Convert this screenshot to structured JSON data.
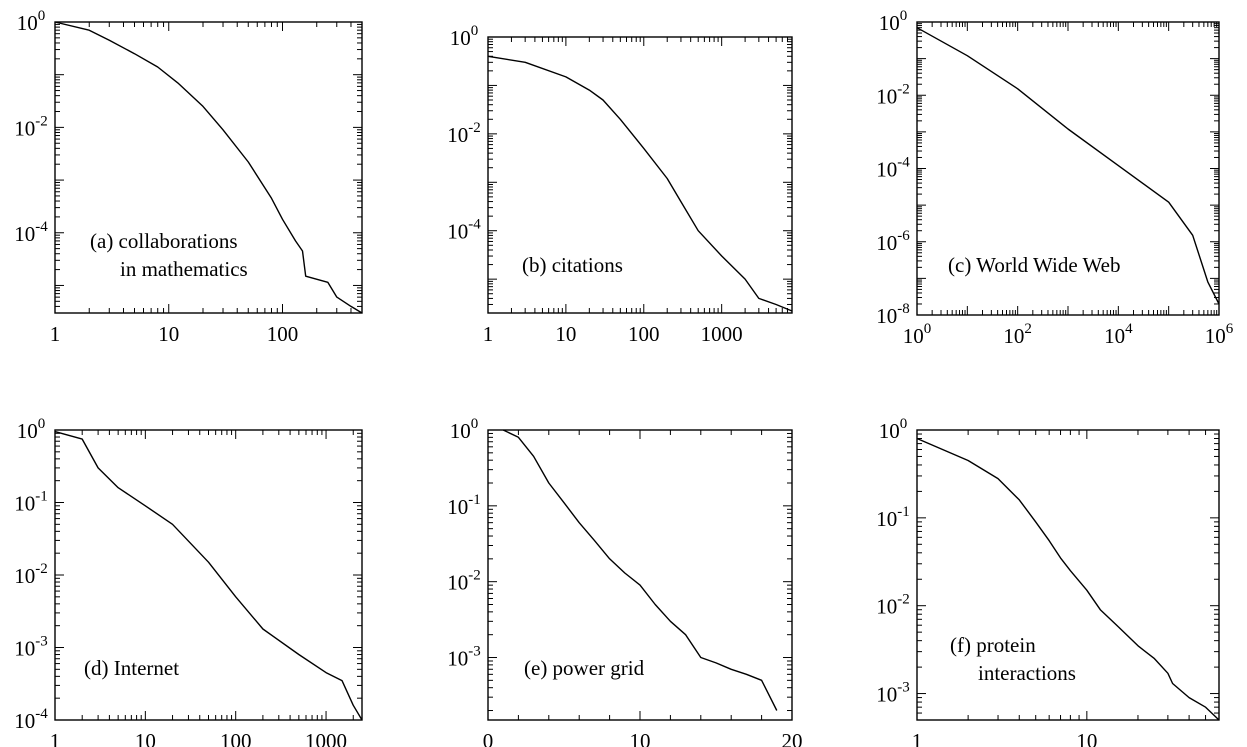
{
  "chart_data": [
    {
      "id": "a",
      "type": "line",
      "xscale": "log",
      "yscale": "log",
      "xlim": [
        1,
        500
      ],
      "ylim": [
        3e-06,
        1
      ],
      "xticks": [
        1,
        10,
        100
      ],
      "xtick_labels": [
        "1",
        "10",
        "100"
      ],
      "yticks": [
        1,
        0.01,
        0.0001
      ],
      "ytick_labels": [
        {
          "base": "10",
          "exp": "0"
        },
        {
          "base": "10",
          "exp": "-2"
        },
        {
          "base": "10",
          "exp": "-4"
        }
      ],
      "annotation": [
        "(a) collaborations",
        "in mathematics"
      ],
      "series": [
        {
          "x": [
            1,
            2,
            3,
            5,
            8,
            12,
            20,
            30,
            50,
            80,
            100,
            130,
            150,
            160,
            250,
            300,
            400,
            500
          ],
          "y": [
            1,
            0.7,
            0.45,
            0.25,
            0.14,
            0.07,
            0.025,
            0.009,
            0.0022,
            0.00045,
            0.00018,
            7e-05,
            4.5e-05,
            1.5e-05,
            1.15e-05,
            6e-06,
            4e-06,
            3e-06
          ]
        }
      ]
    },
    {
      "id": "b",
      "type": "line",
      "xscale": "log",
      "yscale": "log",
      "xlim": [
        1,
        8000
      ],
      "ylim": [
        2e-06,
        1
      ],
      "xticks": [
        1,
        10,
        100,
        1000
      ],
      "xtick_labels": [
        "1",
        "10",
        "100",
        "1000"
      ],
      "yticks": [
        1,
        0.01,
        0.0001
      ],
      "ytick_labels": [
        {
          "base": "10",
          "exp": "0"
        },
        {
          "base": "10",
          "exp": "-2"
        },
        {
          "base": "10",
          "exp": "-4"
        }
      ],
      "annotation": [
        "(b) citations"
      ],
      "series": [
        {
          "x": [
            1,
            3,
            10,
            20,
            30,
            50,
            100,
            200,
            300,
            500,
            1000,
            2000,
            3000,
            5000,
            8000
          ],
          "y": [
            0.4,
            0.3,
            0.15,
            0.08,
            0.05,
            0.02,
            0.005,
            0.0012,
            0.0004,
            0.0001,
            3e-05,
            1e-05,
            4e-06,
            3e-06,
            2.2e-06
          ]
        }
      ]
    },
    {
      "id": "c",
      "type": "line",
      "xscale": "log",
      "yscale": "log",
      "xlim": [
        1,
        1000000
      ],
      "ylim": [
        1e-08,
        1
      ],
      "xticks": [
        1,
        100,
        10000,
        1000000
      ],
      "xtick_labels": [
        {
          "base": "10",
          "exp": "0"
        },
        {
          "base": "10",
          "exp": "2"
        },
        {
          "base": "10",
          "exp": "4"
        },
        {
          "base": "10",
          "exp": "6"
        }
      ],
      "yticks": [
        1,
        0.01,
        0.0001,
        1e-06,
        1e-08
      ],
      "ytick_labels": [
        {
          "base": "10",
          "exp": "0"
        },
        {
          "base": "10",
          "exp": "-2"
        },
        {
          "base": "10",
          "exp": "-4"
        },
        {
          "base": "10",
          "exp": "-6"
        },
        {
          "base": "10",
          "exp": "-8"
        }
      ],
      "annotation": [
        "(c) World Wide Web"
      ],
      "series": [
        {
          "x": [
            1,
            10,
            100,
            1000,
            10000,
            100000,
            300000,
            600000,
            1000000
          ],
          "y": [
            0.7,
            0.12,
            0.015,
            0.0012,
            0.00012,
            1.2e-05,
            1.5e-06,
            8e-08,
            2e-08
          ]
        }
      ]
    },
    {
      "id": "d",
      "type": "line",
      "xscale": "log",
      "yscale": "log",
      "xlim": [
        1,
        2500
      ],
      "ylim": [
        0.0001,
        1
      ],
      "xticks": [
        1,
        10,
        100,
        1000
      ],
      "xtick_labels": [
        "1",
        "10",
        "100",
        "1000"
      ],
      "yticks": [
        1,
        0.1,
        0.01,
        0.001,
        0.0001
      ],
      "ytick_labels": [
        {
          "base": "10",
          "exp": "0"
        },
        {
          "base": "10",
          "exp": "-1"
        },
        {
          "base": "10",
          "exp": "-2"
        },
        {
          "base": "10",
          "exp": "-3"
        },
        {
          "base": "10",
          "exp": "-4"
        }
      ],
      "annotation": [
        "(d) Internet"
      ],
      "series": [
        {
          "x": [
            1,
            2,
            3,
            5,
            10,
            20,
            50,
            100,
            200,
            500,
            1000,
            1500,
            2000,
            2500
          ],
          "y": [
            0.95,
            0.75,
            0.3,
            0.16,
            0.09,
            0.05,
            0.015,
            0.005,
            0.0018,
            0.0008,
            0.00045,
            0.00035,
            0.00016,
            0.0001
          ]
        }
      ]
    },
    {
      "id": "e",
      "type": "line",
      "xscale": "linear",
      "yscale": "log",
      "xlim": [
        0,
        20
      ],
      "ylim": [
        0.00015,
        1
      ],
      "xticks": [
        0,
        10,
        20
      ],
      "xtick_labels": [
        "0",
        "10",
        "20"
      ],
      "yticks": [
        1,
        0.1,
        0.01,
        0.001
      ],
      "ytick_labels": [
        {
          "base": "10",
          "exp": "0"
        },
        {
          "base": "10",
          "exp": "-1"
        },
        {
          "base": "10",
          "exp": "-2"
        },
        {
          "base": "10",
          "exp": "-3"
        }
      ],
      "annotation": [
        "(e) power grid"
      ],
      "series": [
        {
          "x": [
            1,
            2,
            3,
            4,
            5,
            6,
            7,
            8,
            9,
            10,
            11,
            12,
            13,
            14,
            15,
            16,
            17,
            18,
            19
          ],
          "y": [
            1,
            0.8,
            0.45,
            0.2,
            0.11,
            0.06,
            0.035,
            0.02,
            0.013,
            0.009,
            0.005,
            0.003,
            0.002,
            0.001,
            0.00085,
            0.0007,
            0.0006,
            0.0005,
            0.0002
          ]
        }
      ]
    },
    {
      "id": "f",
      "type": "line",
      "xscale": "log",
      "yscale": "log",
      "xlim": [
        1,
        60
      ],
      "ylim": [
        0.0005,
        1
      ],
      "xticks": [
        1,
        10
      ],
      "xtick_labels": [
        "1",
        "10"
      ],
      "yticks": [
        1,
        0.1,
        0.01,
        0.001
      ],
      "ytick_labels": [
        {
          "base": "10",
          "exp": "0"
        },
        {
          "base": "10",
          "exp": "-1"
        },
        {
          "base": "10",
          "exp": "-2"
        },
        {
          "base": "10",
          "exp": "-3"
        }
      ],
      "annotation": [
        "(f) protein",
        "interactions"
      ],
      "series": [
        {
          "x": [
            1,
            2,
            3,
            4,
            5,
            6,
            7,
            8,
            10,
            12,
            15,
            20,
            25,
            30,
            32,
            40,
            50,
            60
          ],
          "y": [
            0.8,
            0.45,
            0.28,
            0.16,
            0.09,
            0.055,
            0.035,
            0.025,
            0.015,
            0.009,
            0.006,
            0.0035,
            0.0025,
            0.0017,
            0.0013,
            0.0009,
            0.0007,
            0.0005
          ]
        }
      ]
    }
  ]
}
